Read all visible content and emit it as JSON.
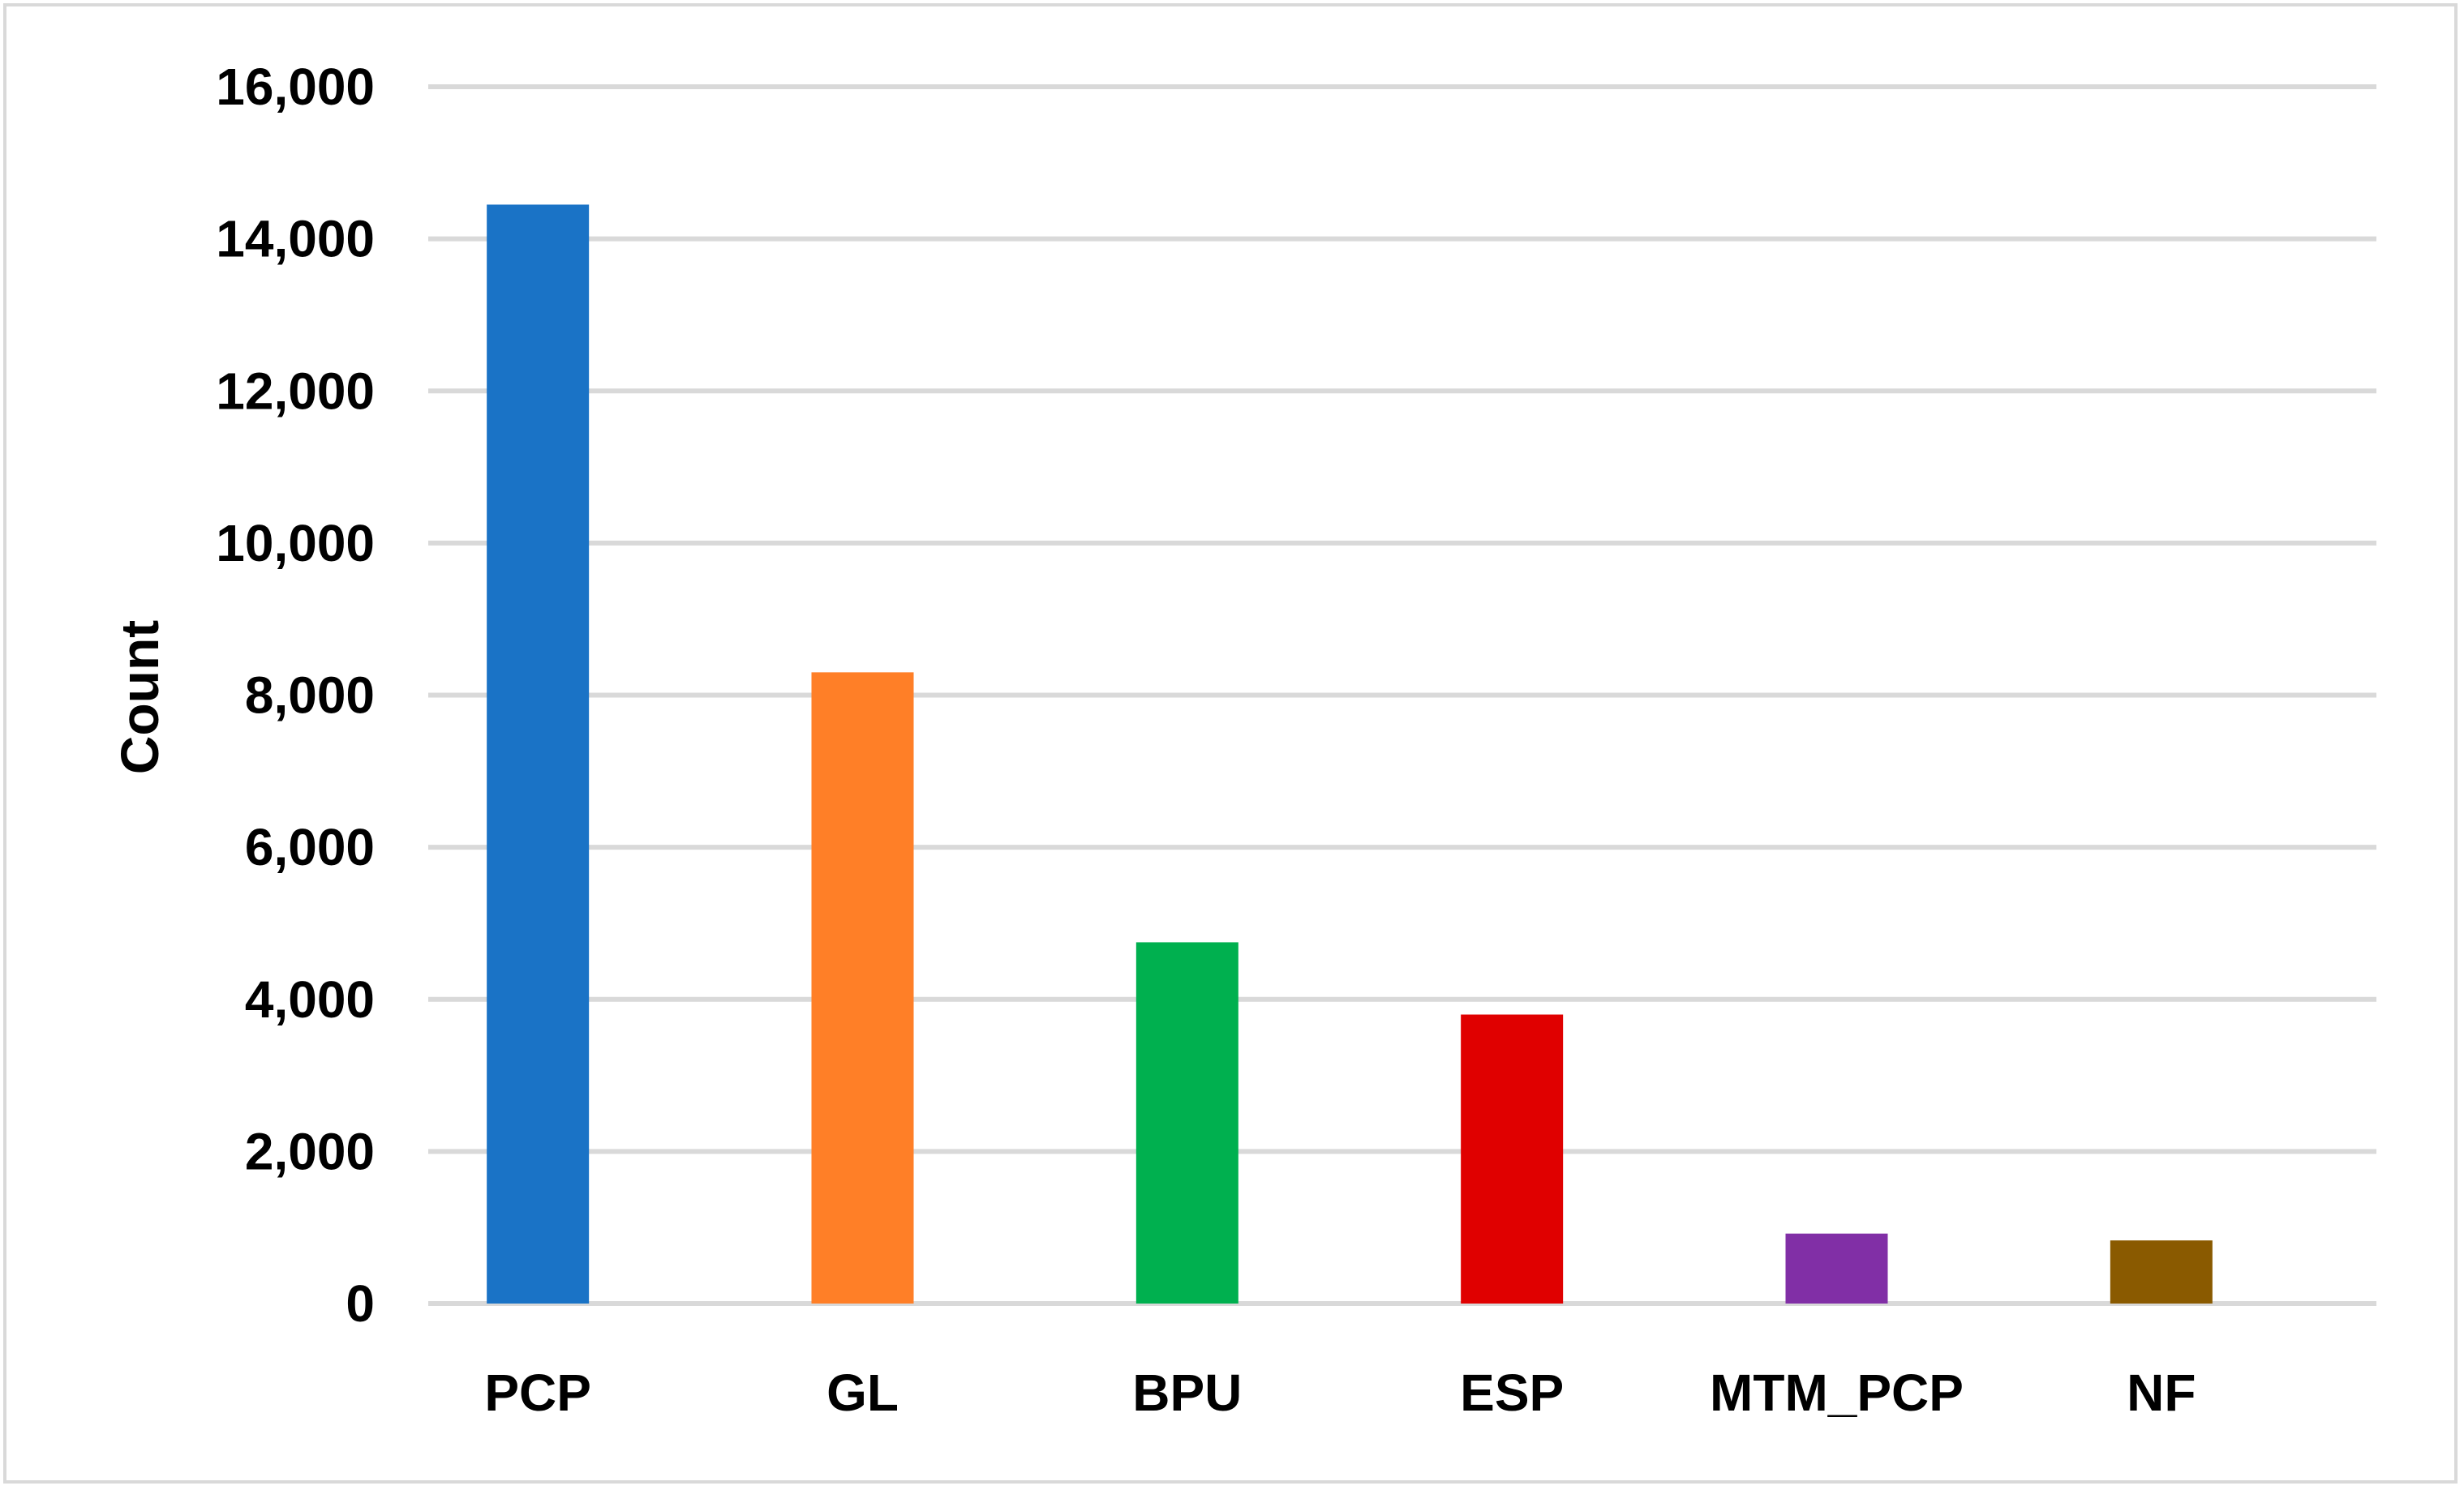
{
  "chart_data": {
    "type": "bar",
    "title": "",
    "xlabel": "",
    "ylabel": "Count",
    "categories": [
      "PCP",
      "GL",
      "BPU",
      "ESP",
      "MTM_PCP",
      "NF"
    ],
    "values": [
      14450,
      8300,
      4750,
      3800,
      920,
      830
    ],
    "colors": [
      "#1a73c6",
      "#ff7f27",
      "#00b04f",
      "#e00000",
      "#812fa6",
      "#8a5a00"
    ],
    "ylim": [
      0,
      16000
    ],
    "yticks": [
      0,
      2000,
      4000,
      6000,
      8000,
      10000,
      12000,
      14000,
      16000
    ],
    "ytick_labels": [
      "0",
      "2,000",
      "4,000",
      "6,000",
      "8,000",
      "10,000",
      "12,000",
      "14,000",
      "16,000"
    ],
    "grid": true,
    "legend": "none"
  }
}
